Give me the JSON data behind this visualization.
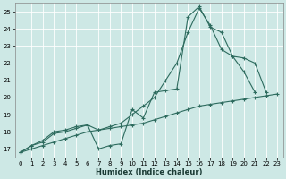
{
  "xlabel": "Humidex (Indice chaleur)",
  "bg_color": "#cde8e5",
  "line_color": "#2d6b5e",
  "grid_color": "#ffffff",
  "xlim": [
    -0.5,
    23.5
  ],
  "ylim": [
    16.5,
    25.5
  ],
  "xticks": [
    0,
    1,
    2,
    3,
    4,
    5,
    6,
    7,
    8,
    9,
    10,
    11,
    12,
    13,
    14,
    15,
    16,
    17,
    18,
    19,
    20,
    21,
    22,
    23
  ],
  "yticks": [
    17,
    18,
    19,
    20,
    21,
    22,
    23,
    24,
    25
  ],
  "line1_x": [
    0,
    1,
    2,
    3,
    4,
    5,
    6,
    7,
    8,
    9,
    10,
    11,
    12,
    13,
    14,
    15,
    16,
    17,
    18,
    19,
    20,
    21
  ],
  "line1_y": [
    16.8,
    17.2,
    17.4,
    17.9,
    18.0,
    18.2,
    18.4,
    17.0,
    17.2,
    17.3,
    19.3,
    18.8,
    20.3,
    20.4,
    20.5,
    24.7,
    25.3,
    24.1,
    23.8,
    22.4,
    21.5,
    20.3
  ],
  "line2_x": [
    0,
    1,
    2,
    3,
    4,
    5,
    6,
    7,
    8,
    9,
    10,
    11,
    12,
    13,
    14,
    15,
    16,
    17,
    18,
    19,
    20,
    21,
    22
  ],
  "line2_y": [
    16.8,
    17.2,
    17.5,
    18.0,
    18.1,
    18.3,
    18.4,
    18.1,
    18.3,
    18.5,
    19.0,
    19.5,
    20.0,
    21.0,
    22.0,
    23.8,
    25.2,
    24.2,
    22.8,
    22.4,
    22.3,
    22.0,
    20.3
  ],
  "line3_x": [
    0,
    1,
    2,
    3,
    4,
    5,
    6,
    7,
    8,
    9,
    10,
    11,
    12,
    13,
    14,
    15,
    16,
    17,
    18,
    19,
    20,
    21,
    22,
    23
  ],
  "line3_y": [
    16.8,
    17.0,
    17.2,
    17.4,
    17.6,
    17.8,
    18.0,
    18.1,
    18.2,
    18.3,
    18.4,
    18.5,
    18.7,
    18.9,
    19.1,
    19.3,
    19.5,
    19.6,
    19.7,
    19.8,
    19.9,
    20.0,
    20.1,
    20.2
  ]
}
